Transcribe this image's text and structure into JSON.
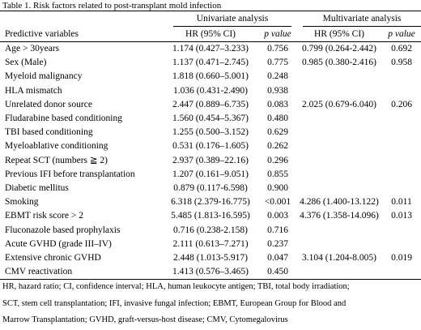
{
  "caption": "Table 1. Risk factors related to post-transplant mold infection",
  "groups": {
    "univariate": "Univariate analysis",
    "multivariate": "Multivariate analysis"
  },
  "headers": {
    "variable": "Predictive variables",
    "hr": "HR (95% CI)",
    "p": "p value"
  },
  "rows": [
    {
      "label": "Age > 30years",
      "uni_hr": "1.174 (0.427–3.233)",
      "uni_p": "0.756",
      "multi_hr": "0.799 (0.264-2.442)",
      "multi_p": "0.692"
    },
    {
      "label": "Sex (Male)",
      "uni_hr": "1.137 (0.471–2.745)",
      "uni_p": "0.775",
      "multi_hr": "0.985 (0.380-2.416)",
      "multi_p": "0.958"
    },
    {
      "label": "Myeloid malignancy",
      "uni_hr": "1.818 (0.660–5.001)",
      "uni_p": "0.248",
      "multi_hr": "",
      "multi_p": ""
    },
    {
      "label": "HLA mismatch",
      "uni_hr": "1.036 (0.431-2.490)",
      "uni_p": "0.938",
      "multi_hr": "",
      "multi_p": ""
    },
    {
      "label": "Unrelated donor source",
      "uni_hr": "2.447 (0.889–6.735)",
      "uni_p": "0.083",
      "multi_hr": "2.025 (0.679-6.040)",
      "multi_p": "0.206"
    },
    {
      "label": "Fludarabine based conditioning",
      "uni_hr": "1.560 (0.454–5.367)",
      "uni_p": "0.480",
      "multi_hr": "",
      "multi_p": ""
    },
    {
      "label": "TBI based conditioning",
      "uni_hr": "1.255 (0.500–3.152)",
      "uni_p": "0.629",
      "multi_hr": "",
      "multi_p": ""
    },
    {
      "label": "Myeloablative conditioning",
      "uni_hr": "0.531 (0.176–1.605)",
      "uni_p": "0.262",
      "multi_hr": "",
      "multi_p": ""
    },
    {
      "label": "Repeat SCT (numbers ≧ 2)",
      "uni_hr": "2.937 (0.389–22.16)",
      "uni_p": "0.296",
      "multi_hr": "",
      "multi_p": ""
    },
    {
      "label": "Previous IFI before transplantation",
      "uni_hr": "1.207 (0.161–9.051)",
      "uni_p": "0.855",
      "multi_hr": "",
      "multi_p": ""
    },
    {
      "label": "Diabetic mellitus",
      "uni_hr": "0.879 (0.117-6.598)",
      "uni_p": "0.900",
      "multi_hr": "",
      "multi_p": ""
    },
    {
      "label": "Smoking",
      "uni_hr": "6.318 (2.379-16.775)",
      "uni_p": "<0.001",
      "multi_hr": "4.286 (1.400-13.122)",
      "multi_p": "0.011"
    },
    {
      "label": "EBMT risk score > 2",
      "uni_hr": "5.485 (1.813-16.595)",
      "uni_p": "0.003",
      "multi_hr": "4.376 (1.358-14.096)",
      "multi_p": "0.013"
    },
    {
      "label": "Fluconazole based prophylaxis",
      "uni_hr": "0.716 (0.238-2.158)",
      "uni_p": "0.716",
      "multi_hr": "",
      "multi_p": ""
    },
    {
      "label": "Acute GVHD (grade III–IV)",
      "uni_hr": "2.111 (0.613–7.271)",
      "uni_p": "0.237",
      "multi_hr": "",
      "multi_p": ""
    },
    {
      "label": "Extensive chronic GVHD",
      "uni_hr": "2.448 (1.013-5.917)",
      "uni_p": "0.047",
      "multi_hr": "3.104 (1.204-8.005)",
      "multi_p": "0.019"
    },
    {
      "label": "CMV reactivation",
      "uni_hr": "1.413 (0.576–3.465)",
      "uni_p": "0.450",
      "multi_hr": "",
      "multi_p": ""
    }
  ],
  "footnote": [
    "HR, hazard ratio; CI, confidence interval; HLA, human leukocyte antigen; TBI, total body irradiation;",
    "SCT, stem cell transplantation; IFI, invasive fungal infection; EBMT, European Group for Blood and",
    "Marrow Transplantation; GVHD, graft-versus-host disease; CMV, Cytomegalovirus"
  ]
}
